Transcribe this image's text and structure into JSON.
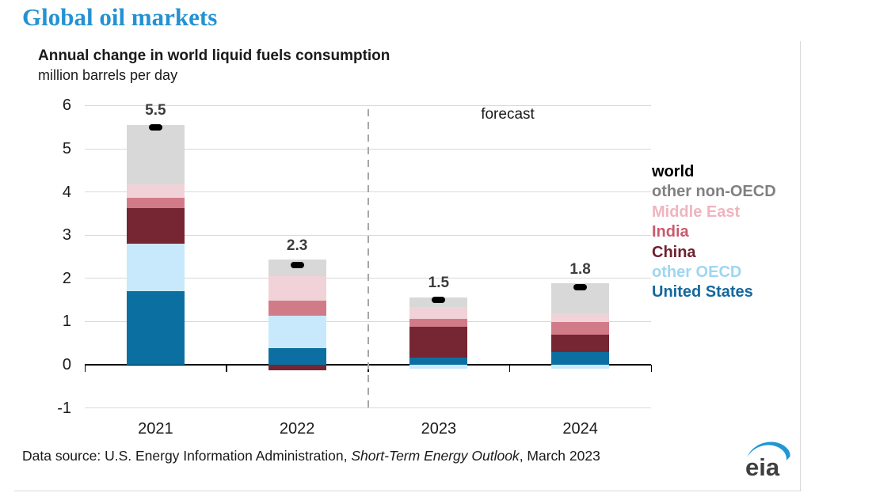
{
  "page_title": "Global oil markets",
  "chart_data": {
    "type": "bar",
    "subtype": "stacked-with-net-marker",
    "title": "Annual change in world liquid fuels consumption",
    "subtitle_unit": "million barrels per day",
    "categories": [
      "2021",
      "2022",
      "2023",
      "2024"
    ],
    "series": [
      {
        "name": "United States",
        "color": "#0c6fa1",
        "legend_color": "#15689c",
        "values": [
          1.7,
          0.38,
          0.16,
          0.29
        ]
      },
      {
        "name": "other OECD",
        "color": "#c7e9fb",
        "legend_color": "#9fd6f2",
        "values": [
          1.1,
          0.75,
          -0.1,
          -0.1
        ]
      },
      {
        "name": "China",
        "color": "#762532",
        "legend_color": "#6e2230",
        "values": [
          0.83,
          -0.13,
          0.72,
          0.4
        ]
      },
      {
        "name": "India",
        "color": "#d27b88",
        "legend_color": "#c75b6d",
        "values": [
          0.24,
          0.35,
          0.18,
          0.29
        ]
      },
      {
        "name": "Middle East",
        "color": "#f0d2d8",
        "legend_color": "#efb5bf",
        "values": [
          0.31,
          0.57,
          0.27,
          0.21
        ]
      },
      {
        "name": "other non-OECD",
        "color": "#d8d8d8",
        "legend_color": "#808080",
        "values": [
          1.37,
          0.38,
          0.23,
          0.7
        ]
      }
    ],
    "world_series": {
      "name": "world",
      "color": "#000000",
      "values": [
        5.5,
        2.3,
        1.5,
        1.8
      ]
    },
    "bar_labels": [
      "5.5",
      "2.3",
      "1.5",
      "1.8"
    ],
    "yticks": [
      6,
      5,
      4,
      3,
      2,
      1,
      0,
      -1
    ],
    "ylim": [
      -1,
      6
    ],
    "grid": true,
    "legend_position": "right",
    "legend_order": [
      "world",
      "other non-OECD",
      "Middle East",
      "India",
      "China",
      "other OECD",
      "United States"
    ],
    "forecast_label": "forecast",
    "forecast_divider_after": "2022"
  },
  "footer": {
    "prefix": "Data source: U.S. Energy Information Administration, ",
    "report": "Short-Term Energy Outlook",
    "suffix": ", March 2023"
  },
  "logo": {
    "text": "eia"
  },
  "colors": {
    "page_title": "#2492d2",
    "gridline": "#d9d9d9",
    "zero_axis": "#000000",
    "divider": "#a6a6a6",
    "value_label": "#3d3d3d",
    "frame": "#d9d9d9",
    "logo_swoosh": "#2196d6",
    "logo_text": "#3f3f3f"
  }
}
